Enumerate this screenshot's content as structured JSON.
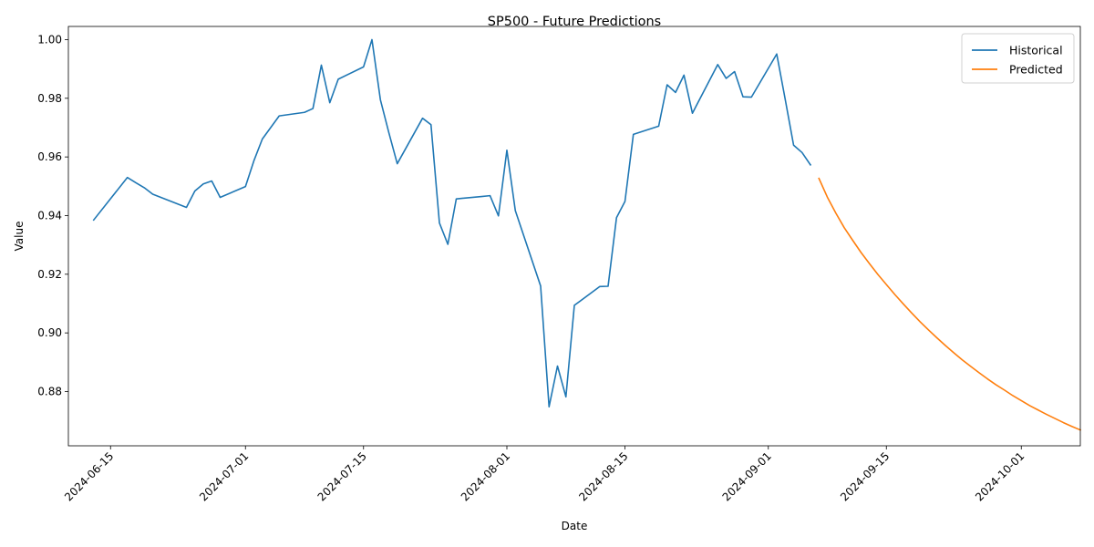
{
  "chart_data": {
    "type": "line",
    "title": "SP500 - Future Predictions",
    "xlabel": "Date",
    "ylabel": "Value",
    "xlim": [
      "2024-06-10",
      "2024-10-08"
    ],
    "ylim": [
      0.8615,
      1.0045
    ],
    "x_ticks": [
      "2024-06-15",
      "2024-07-01",
      "2024-07-15",
      "2024-08-01",
      "2024-08-15",
      "2024-09-01",
      "2024-09-15",
      "2024-10-01"
    ],
    "y_ticks": [
      "0.88",
      "0.90",
      "0.92",
      "0.94",
      "0.96",
      "0.98",
      "1.00"
    ],
    "grid": false,
    "legend_position": "top-right",
    "series": [
      {
        "name": "Historical",
        "color": "#1f77b4",
        "points": [
          [
            "2024-06-13",
            0.9385
          ],
          [
            "2024-06-17",
            0.953
          ],
          [
            "2024-06-18",
            0.9512
          ],
          [
            "2024-06-19",
            0.9495
          ],
          [
            "2024-06-20",
            0.9473
          ],
          [
            "2024-06-24",
            0.9428
          ],
          [
            "2024-06-25",
            0.9484
          ],
          [
            "2024-06-26",
            0.9508
          ],
          [
            "2024-06-27",
            0.9518
          ],
          [
            "2024-06-28",
            0.9462
          ],
          [
            "2024-07-01",
            0.9499
          ],
          [
            "2024-07-02",
            0.9587
          ],
          [
            "2024-07-03",
            0.9661
          ],
          [
            "2024-07-05",
            0.974
          ],
          [
            "2024-07-08",
            0.9752
          ],
          [
            "2024-07-09",
            0.9765
          ],
          [
            "2024-07-10",
            0.9913
          ],
          [
            "2024-07-11",
            0.9785
          ],
          [
            "2024-07-12",
            0.9865
          ],
          [
            "2024-07-15",
            0.9907
          ],
          [
            "2024-07-16",
            1.0
          ],
          [
            "2024-07-17",
            0.9795
          ],
          [
            "2024-07-18",
            0.9683
          ],
          [
            "2024-07-19",
            0.9577
          ],
          [
            "2024-07-22",
            0.9732
          ],
          [
            "2024-07-23",
            0.971
          ],
          [
            "2024-07-24",
            0.9375
          ],
          [
            "2024-07-25",
            0.9302
          ],
          [
            "2024-07-26",
            0.9457
          ],
          [
            "2024-07-29",
            0.9465
          ],
          [
            "2024-07-30",
            0.9468
          ],
          [
            "2024-07-31",
            0.9399
          ],
          [
            "2024-08-01",
            0.9623
          ],
          [
            "2024-08-02",
            0.9417
          ],
          [
            "2024-08-05",
            0.916
          ],
          [
            "2024-08-06",
            0.8748
          ],
          [
            "2024-08-07",
            0.8887
          ],
          [
            "2024-08-08",
            0.8782
          ],
          [
            "2024-08-09",
            0.9094
          ],
          [
            "2024-08-12",
            0.9158
          ],
          [
            "2024-08-13",
            0.9159
          ],
          [
            "2024-08-14",
            0.9393
          ],
          [
            "2024-08-15",
            0.9448
          ],
          [
            "2024-08-16",
            0.9677
          ],
          [
            "2024-08-19",
            0.9705
          ],
          [
            "2024-08-20",
            0.9846
          ],
          [
            "2024-08-21",
            0.982
          ],
          [
            "2024-08-22",
            0.9879
          ],
          [
            "2024-08-23",
            0.9749
          ],
          [
            "2024-08-26",
            0.9915
          ],
          [
            "2024-08-27",
            0.9868
          ],
          [
            "2024-08-28",
            0.9891
          ],
          [
            "2024-08-29",
            0.9805
          ],
          [
            "2024-08-30",
            0.9804
          ],
          [
            "2024-09-02",
            0.9951
          ],
          [
            "2024-09-03",
            0.9797
          ],
          [
            "2024-09-04",
            0.964
          ],
          [
            "2024-09-05",
            0.9615
          ],
          [
            "2024-09-06",
            0.9573
          ]
        ]
      },
      {
        "name": "Predicted",
        "color": "#ff7f0e",
        "points": [
          [
            "2024-09-07",
            0.9527
          ],
          [
            "2024-09-08",
            0.9463
          ],
          [
            "2024-09-09",
            0.9409
          ],
          [
            "2024-09-10",
            0.9359
          ],
          [
            "2024-09-11",
            0.9316
          ],
          [
            "2024-09-12",
            0.9274
          ],
          [
            "2024-09-13",
            0.9236
          ],
          [
            "2024-09-14",
            0.9199
          ],
          [
            "2024-09-15",
            0.9165
          ],
          [
            "2024-09-16",
            0.9131
          ],
          [
            "2024-09-17",
            0.9099
          ],
          [
            "2024-09-18",
            0.9068
          ],
          [
            "2024-09-19",
            0.9038
          ],
          [
            "2024-09-20",
            0.901
          ],
          [
            "2024-09-21",
            0.8983
          ],
          [
            "2024-09-22",
            0.8957
          ],
          [
            "2024-09-23",
            0.8932
          ],
          [
            "2024-09-24",
            0.8908
          ],
          [
            "2024-09-25",
            0.8886
          ],
          [
            "2024-09-26",
            0.8864
          ],
          [
            "2024-09-27",
            0.8843
          ],
          [
            "2024-09-28",
            0.8823
          ],
          [
            "2024-09-29",
            0.8805
          ],
          [
            "2024-09-30",
            0.8786
          ],
          [
            "2024-10-01",
            0.8769
          ],
          [
            "2024-10-02",
            0.8752
          ],
          [
            "2024-10-03",
            0.8737
          ],
          [
            "2024-10-04",
            0.8722
          ],
          [
            "2024-10-05",
            0.8708
          ],
          [
            "2024-10-06",
            0.8694
          ],
          [
            "2024-10-07",
            0.8681
          ],
          [
            "2024-10-08",
            0.8669
          ]
        ]
      }
    ]
  }
}
